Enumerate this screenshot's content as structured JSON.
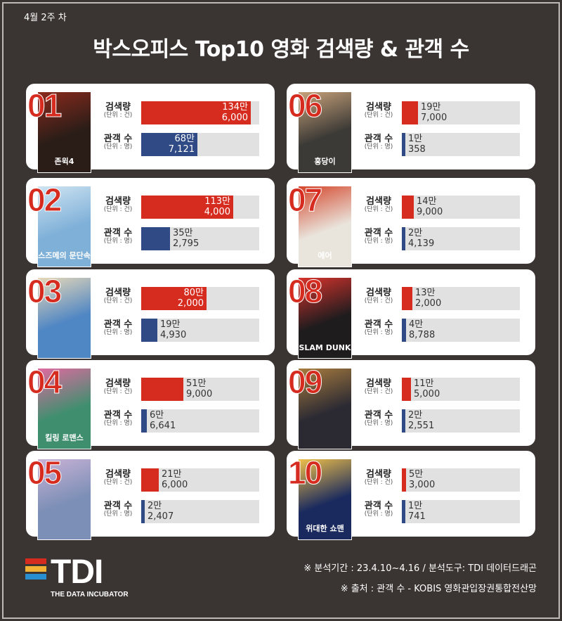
{
  "header": {
    "week": "4월 2주 차",
    "title": "박스오피스 Top10 영화 검색량 & 관객 수"
  },
  "labels": {
    "search": "검색량",
    "search_unit": "(단위 : 건)",
    "audience": "관객 수",
    "audience_unit": "(단위 : 명)"
  },
  "colors": {
    "search_bar": "#d62b1f",
    "audience_bar": "#2f4a84",
    "rank_number": "#d62b1f"
  },
  "chart_data": {
    "type": "bar",
    "categories": [
      "01",
      "02",
      "03",
      "04",
      "05",
      "06",
      "07",
      "08",
      "09",
      "10"
    ],
    "series": [
      {
        "name": "검색량",
        "values": [
          1346000,
          1134000,
          802000,
          519000,
          216000,
          197000,
          149000,
          132000,
          115000,
          53000
        ],
        "labels": [
          [
            "134만",
            "6,000"
          ],
          [
            "113만",
            "4,000"
          ],
          [
            "80만",
            "2,000"
          ],
          [
            "51만",
            "9,000"
          ],
          [
            "21만",
            "6,000"
          ],
          [
            "19만",
            "7,000"
          ],
          [
            "14만",
            "9,000"
          ],
          [
            "13만",
            "2,000"
          ],
          [
            "11만",
            "5,000"
          ],
          [
            "5만",
            "3,000"
          ]
        ]
      },
      {
        "name": "관객 수",
        "values": [
          687121,
          352795,
          194930,
          66641,
          22407,
          10358,
          24139,
          48788,
          22551,
          10741
        ],
        "labels": [
          [
            "68만",
            "7,121"
          ],
          [
            "35만",
            "2,795"
          ],
          [
            "19만",
            "4,930"
          ],
          [
            "6만",
            "6,641"
          ],
          [
            "2만",
            "2,407"
          ],
          [
            "1만",
            "358"
          ],
          [
            "2만",
            "4,139"
          ],
          [
            "4만",
            "8,788"
          ],
          [
            "2만",
            "2,551"
          ],
          [
            "1만",
            "741"
          ]
        ]
      }
    ],
    "search_max": 1450000,
    "audience_max": 1450000
  },
  "posters": [
    {
      "text": "존윅4",
      "bg": "#2a1d18",
      "accent": "#8a2a1c"
    },
    {
      "text": "스즈메의 문단속",
      "bg": "#7fb0d8",
      "accent": "#cfe4f2"
    },
    {
      "text": "",
      "bg": "#4f86c4",
      "accent": "#e8d9b8"
    },
    {
      "text": "킬링 로맨스",
      "bg": "#3f8f6f",
      "accent": "#e06aa0"
    },
    {
      "text": "",
      "bg": "#7c8fb6",
      "accent": "#c9b2d6"
    },
    {
      "text": "홍당이",
      "bg": "#3c3a36",
      "accent": "#c8a27a"
    },
    {
      "text": "에어",
      "bg": "#e9e4dc",
      "accent": "#d4462b"
    },
    {
      "text": "SLAM DUNK",
      "bg": "#1f1c1e",
      "accent": "#d8332c"
    },
    {
      "text": "",
      "bg": "#2b2a33",
      "accent": "#a97c3e"
    },
    {
      "text": "위대한 쇼맨",
      "bg": "#1a2a5e",
      "accent": "#f0c04a"
    }
  ],
  "footer": {
    "period": "※ 분석기간 : 23.4.10~4.16 / 분석도구: TDI 데이터드래곤",
    "source": "※ 출처 : 관객 수 -  KOBIS 영화관입장권통합전산망"
  },
  "logo": {
    "text": "TDI",
    "subtitle": "THE DATA INCUBATOR",
    "stripe_colors": [
      "#d62b1f",
      "#f2b233",
      "#2a8fd0"
    ]
  }
}
